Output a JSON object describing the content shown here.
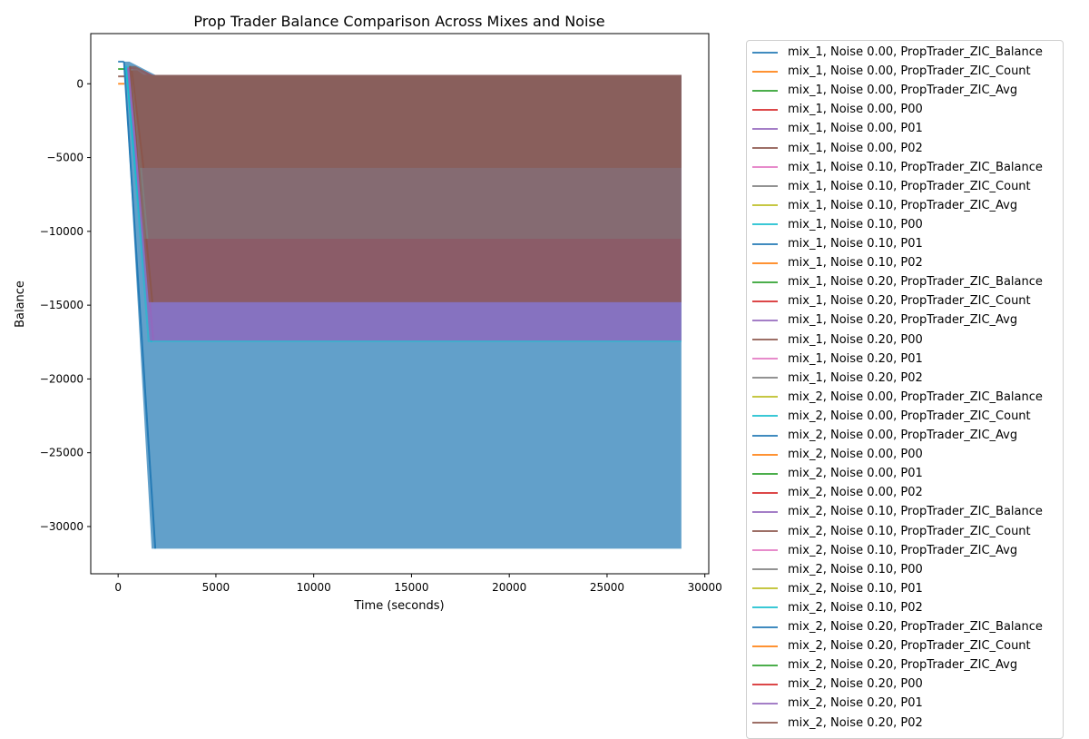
{
  "chart_data": {
    "type": "line",
    "title": "Prop Trader Balance Comparison Across Mixes and Noise",
    "xlabel": "Time (seconds)",
    "ylabel": "Balance",
    "xlim": [
      -1400,
      30200
    ],
    "ylim": [
      -33200,
      3400
    ],
    "x_ticks": [
      0,
      5000,
      10000,
      15000,
      20000,
      25000,
      30000
    ],
    "x_tick_labels": [
      "0",
      "5000",
      "10000",
      "15000",
      "20000",
      "25000",
      "30000"
    ],
    "y_ticks": [
      0,
      -5000,
      -10000,
      -15000,
      -20000,
      -25000,
      -30000
    ],
    "y_tick_labels": [
      "0",
      "−5000",
      "−10000",
      "−15000",
      "−20000",
      "−25000",
      "−30000"
    ],
    "grid": false,
    "legend_placement": "outside-right",
    "palette": [
      "#1f77b4",
      "#ff7f0e",
      "#2ca02c",
      "#d62728",
      "#9467bd",
      "#8c564b",
      "#e377c2",
      "#7f7f7f",
      "#bcbd22",
      "#17becf"
    ],
    "bands": [
      {
        "color": "#1f77b4",
        "opacity": 0.7,
        "x": [
          1900,
          28800
        ],
        "y": [
          -31500,
          600
        ],
        "drop": [
          [
            300,
            1500
          ],
          [
            1900,
            -31500
          ]
        ]
      },
      {
        "color": "#17becf",
        "opacity": 0.55,
        "x": [
          1700,
          28800
        ],
        "y": [
          -17500,
          600
        ],
        "drop": [
          [
            400,
            1200
          ],
          [
            1700,
            -17500
          ]
        ]
      },
      {
        "color": "#9467bd",
        "opacity": 0.85,
        "x": [
          1800,
          28800
        ],
        "y": [
          -17400,
          600
        ],
        "drop": [
          [
            500,
            1100
          ],
          [
            1800,
            -17400
          ]
        ]
      },
      {
        "color": "#8c564b",
        "opacity": 0.75,
        "x": [
          1750,
          28800
        ],
        "y": [
          -14800,
          600
        ],
        "drop": [
          [
            600,
            1200
          ],
          [
            1750,
            -14800
          ]
        ]
      },
      {
        "color": "#7f7f7f",
        "opacity": 0.45,
        "x": [
          1500,
          28800
        ],
        "y": [
          -10500,
          600
        ],
        "drop": [
          [
            700,
            1000
          ],
          [
            1500,
            -10500
          ]
        ]
      },
      {
        "color": "#8c564b",
        "opacity": 0.55,
        "x": [
          1300,
          28800
        ],
        "y": [
          -5700,
          600
        ],
        "drop": [
          [
            700,
            900
          ],
          [
            1300,
            -5700
          ]
        ]
      }
    ],
    "start_markers": [
      {
        "color": "#1f77b4",
        "x": [
          0,
          300
        ],
        "y": 1500
      },
      {
        "color": "#2ca02c",
        "x": [
          0,
          320
        ],
        "y": 1000
      },
      {
        "color": "#8c564b",
        "x": [
          0,
          320
        ],
        "y": 500
      },
      {
        "color": "#ff7f0e",
        "x": [
          0,
          320
        ],
        "y": 0
      }
    ],
    "series": [
      {
        "name": "mix_1, Noise 0.00, PropTrader_ZIC_Balance",
        "color": "#1f77b4"
      },
      {
        "name": "mix_1, Noise 0.00, PropTrader_ZIC_Count",
        "color": "#ff7f0e"
      },
      {
        "name": "mix_1, Noise 0.00, PropTrader_ZIC_Avg",
        "color": "#2ca02c"
      },
      {
        "name": "mix_1, Noise 0.00, P00",
        "color": "#d62728"
      },
      {
        "name": "mix_1, Noise 0.00, P01",
        "color": "#9467bd"
      },
      {
        "name": "mix_1, Noise 0.00, P02",
        "color": "#8c564b"
      },
      {
        "name": "mix_1, Noise 0.10, PropTrader_ZIC_Balance",
        "color": "#e377c2"
      },
      {
        "name": "mix_1, Noise 0.10, PropTrader_ZIC_Count",
        "color": "#7f7f7f"
      },
      {
        "name": "mix_1, Noise 0.10, PropTrader_ZIC_Avg",
        "color": "#bcbd22"
      },
      {
        "name": "mix_1, Noise 0.10, P00",
        "color": "#17becf"
      },
      {
        "name": "mix_1, Noise 0.10, P01",
        "color": "#1f77b4"
      },
      {
        "name": "mix_1, Noise 0.10, P02",
        "color": "#ff7f0e"
      },
      {
        "name": "mix_1, Noise 0.20, PropTrader_ZIC_Balance",
        "color": "#2ca02c"
      },
      {
        "name": "mix_1, Noise 0.20, PropTrader_ZIC_Count",
        "color": "#d62728"
      },
      {
        "name": "mix_1, Noise 0.20, PropTrader_ZIC_Avg",
        "color": "#9467bd"
      },
      {
        "name": "mix_1, Noise 0.20, P00",
        "color": "#8c564b"
      },
      {
        "name": "mix_1, Noise 0.20, P01",
        "color": "#e377c2"
      },
      {
        "name": "mix_1, Noise 0.20, P02",
        "color": "#7f7f7f"
      },
      {
        "name": "mix_2, Noise 0.00, PropTrader_ZIC_Balance",
        "color": "#bcbd22"
      },
      {
        "name": "mix_2, Noise 0.00, PropTrader_ZIC_Count",
        "color": "#17becf"
      },
      {
        "name": "mix_2, Noise 0.00, PropTrader_ZIC_Avg",
        "color": "#1f77b4"
      },
      {
        "name": "mix_2, Noise 0.00, P00",
        "color": "#ff7f0e"
      },
      {
        "name": "mix_2, Noise 0.00, P01",
        "color": "#2ca02c"
      },
      {
        "name": "mix_2, Noise 0.00, P02",
        "color": "#d62728"
      },
      {
        "name": "mix_2, Noise 0.10, PropTrader_ZIC_Balance",
        "color": "#9467bd"
      },
      {
        "name": "mix_2, Noise 0.10, PropTrader_ZIC_Count",
        "color": "#8c564b"
      },
      {
        "name": "mix_2, Noise 0.10, PropTrader_ZIC_Avg",
        "color": "#e377c2"
      },
      {
        "name": "mix_2, Noise 0.10, P00",
        "color": "#7f7f7f"
      },
      {
        "name": "mix_2, Noise 0.10, P01",
        "color": "#bcbd22"
      },
      {
        "name": "mix_2, Noise 0.10, P02",
        "color": "#17becf"
      },
      {
        "name": "mix_2, Noise 0.20, PropTrader_ZIC_Balance",
        "color": "#1f77b4"
      },
      {
        "name": "mix_2, Noise 0.20, PropTrader_ZIC_Count",
        "color": "#ff7f0e"
      },
      {
        "name": "mix_2, Noise 0.20, PropTrader_ZIC_Avg",
        "color": "#2ca02c"
      },
      {
        "name": "mix_2, Noise 0.20, P00",
        "color": "#d62728"
      },
      {
        "name": "mix_2, Noise 0.20, P01",
        "color": "#9467bd"
      },
      {
        "name": "mix_2, Noise 0.20, P02",
        "color": "#8c564b"
      }
    ]
  }
}
